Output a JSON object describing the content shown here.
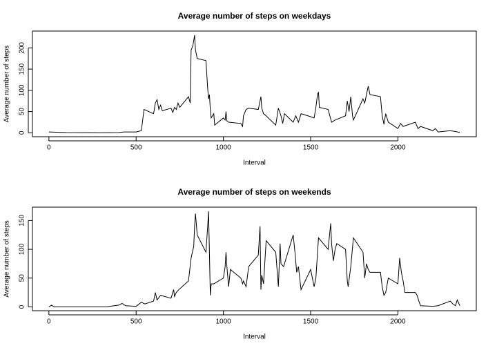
{
  "chart_data": [
    {
      "type": "line",
      "title": "Average number of steps on weekdays",
      "x_label": "Interval",
      "y_label": "Average number of steps",
      "color": "#000000",
      "x": [
        0,
        100,
        200,
        300,
        400,
        430,
        500,
        530,
        545,
        600,
        610,
        620,
        630,
        640,
        650,
        700,
        710,
        720,
        730,
        740,
        750,
        800,
        810,
        815,
        825,
        835,
        840,
        850,
        900,
        910,
        915,
        920,
        925,
        930,
        945,
        950,
        1000,
        1010,
        1015,
        1020,
        1030,
        1100,
        1110,
        1115,
        1130,
        1145,
        1200,
        1215,
        1220,
        1230,
        1245,
        1300,
        1315,
        1330,
        1340,
        1350,
        1400,
        1415,
        1430,
        1445,
        1500,
        1520,
        1530,
        1540,
        1545,
        1550,
        1600,
        1610,
        1620,
        1640,
        1700,
        1710,
        1720,
        1730,
        1740,
        1745,
        1800,
        1810,
        1820,
        1830,
        1840,
        1900,
        1910,
        1920,
        1930,
        1945,
        2000,
        2015,
        2030,
        2100,
        2115,
        2130,
        2200,
        2215,
        2230,
        2300,
        2330,
        2355
      ],
      "values": [
        2,
        0.5,
        0.3,
        0.2,
        0.5,
        2,
        2,
        5,
        55,
        45,
        70,
        78,
        55,
        65,
        52,
        58,
        48,
        60,
        55,
        70,
        60,
        85,
        70,
        195,
        205,
        230,
        195,
        175,
        170,
        105,
        80,
        90,
        55,
        35,
        45,
        18,
        35,
        30,
        50,
        28,
        25,
        22,
        15,
        40,
        55,
        58,
        55,
        85,
        58,
        45,
        40,
        18,
        58,
        40,
        22,
        45,
        25,
        40,
        25,
        45,
        38,
        35,
        60,
        92,
        95,
        60,
        55,
        40,
        25,
        30,
        40,
        75,
        50,
        85,
        40,
        30,
        80,
        70,
        90,
        110,
        90,
        85,
        40,
        20,
        45,
        25,
        10,
        22,
        15,
        25,
        10,
        15,
        5,
        10,
        2,
        5,
        3,
        1
      ],
      "xlim": [
        -94.2,
        2449.2
      ],
      "xticks": [
        0,
        500,
        1000,
        1500,
        2000
      ],
      "ylim": [
        -9.2,
        239.6
      ],
      "yticks": [
        0,
        50,
        100,
        150,
        200
      ]
    },
    {
      "type": "line",
      "title": "Average number of steps on weekends",
      "x_label": "Interval",
      "y_label": "Average number of steps",
      "color": "#000000",
      "x": [
        0,
        15,
        30,
        100,
        200,
        300,
        330,
        400,
        420,
        440,
        500,
        530,
        550,
        600,
        610,
        620,
        640,
        700,
        715,
        720,
        730,
        745,
        800,
        815,
        830,
        835,
        840,
        850,
        900,
        910,
        915,
        925,
        930,
        945,
        1000,
        1010,
        1015,
        1020,
        1030,
        1040,
        1100,
        1110,
        1115,
        1130,
        1145,
        1200,
        1210,
        1215,
        1220,
        1230,
        1245,
        1300,
        1310,
        1315,
        1325,
        1330,
        1345,
        1400,
        1410,
        1420,
        1430,
        1445,
        1500,
        1520,
        1530,
        1545,
        1600,
        1610,
        1615,
        1620,
        1630,
        1640,
        1650,
        1700,
        1710,
        1715,
        1730,
        1745,
        1800,
        1810,
        1820,
        1830,
        1840,
        1900,
        1910,
        1920,
        1930,
        1945,
        2000,
        2010,
        2020,
        2030,
        2040,
        2100,
        2110,
        2120,
        2130,
        2200,
        2230,
        2300,
        2315,
        2330,
        2340,
        2355
      ],
      "values": [
        0,
        3,
        0,
        0,
        0,
        0,
        0,
        3,
        6,
        2,
        1,
        8,
        5,
        10,
        25,
        12,
        20,
        15,
        30,
        18,
        25,
        30,
        45,
        85,
        105,
        140,
        162,
        125,
        95,
        140,
        166,
        20,
        40,
        40,
        50,
        70,
        95,
        70,
        35,
        65,
        50,
        40,
        45,
        35,
        70,
        90,
        140,
        30,
        55,
        40,
        115,
        95,
        55,
        35,
        110,
        75,
        70,
        125,
        95,
        60,
        70,
        30,
        65,
        35,
        50,
        120,
        100,
        130,
        145,
        110,
        80,
        100,
        110,
        100,
        45,
        35,
        70,
        120,
        95,
        50,
        75,
        65,
        60,
        60,
        35,
        20,
        25,
        50,
        40,
        85,
        60,
        45,
        25,
        25,
        20,
        10,
        2,
        1,
        2,
        10,
        5,
        2,
        12,
        2
      ],
      "xlim": [
        -94.2,
        2449.2
      ],
      "xticks": [
        0,
        500,
        1000,
        1500,
        2000
      ],
      "ylim": [
        -6.7,
        173.3
      ],
      "yticks": [
        0,
        50,
        100,
        150
      ]
    }
  ]
}
